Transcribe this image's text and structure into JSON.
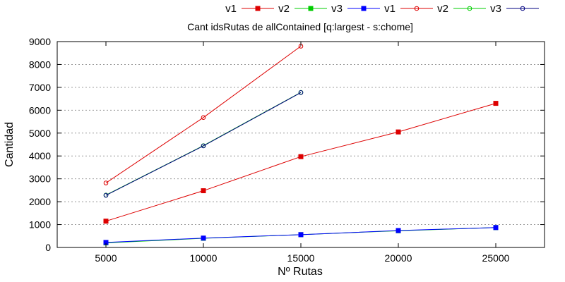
{
  "chart_data": {
    "type": "line",
    "title": "Cant idsRutas de allContained [q:largest - s:chome]",
    "xlabel": "Nº Rutas",
    "ylabel": "Cantidad",
    "xlim": [
      2500,
      27500
    ],
    "ylim": [
      0,
      9000
    ],
    "xticks": [
      5000,
      10000,
      15000,
      20000,
      25000
    ],
    "yticks": [
      0,
      1000,
      2000,
      3000,
      4000,
      5000,
      6000,
      7000,
      8000,
      9000
    ],
    "grid": "horizontal-dotted",
    "legend_position": "top-right",
    "series": [
      {
        "name": "v1",
        "color": "#dd0000",
        "marker": "square-filled",
        "x": [
          5000,
          10000,
          15000,
          20000,
          25000
        ],
        "y": [
          1150,
          2480,
          3970,
          5050,
          6300
        ]
      },
      {
        "name": "v2",
        "color": "#00cc00",
        "marker": "square-filled",
        "x": [
          5000,
          10000,
          15000,
          20000,
          25000
        ],
        "y": [
          200,
          400,
          560,
          730,
          870
        ]
      },
      {
        "name": "v3",
        "color": "#0000ff",
        "marker": "square-filled",
        "x": [
          5000,
          10000,
          15000,
          20000,
          25000
        ],
        "y": [
          220,
          410,
          560,
          740,
          870
        ]
      },
      {
        "name": "v1",
        "color": "#dd0000",
        "marker": "circle-open",
        "x": [
          5000,
          10000,
          15000
        ],
        "y": [
          2820,
          5680,
          8800
        ]
      },
      {
        "name": "v2",
        "color": "#00cc00",
        "marker": "circle-open",
        "x": [
          5000,
          10000,
          15000
        ],
        "y": [
          2290,
          4450,
          6780
        ]
      },
      {
        "name": "v3",
        "color": "#000080",
        "marker": "circle-open",
        "x": [
          5000,
          10000,
          15000
        ],
        "y": [
          2280,
          4440,
          6770
        ]
      }
    ]
  }
}
